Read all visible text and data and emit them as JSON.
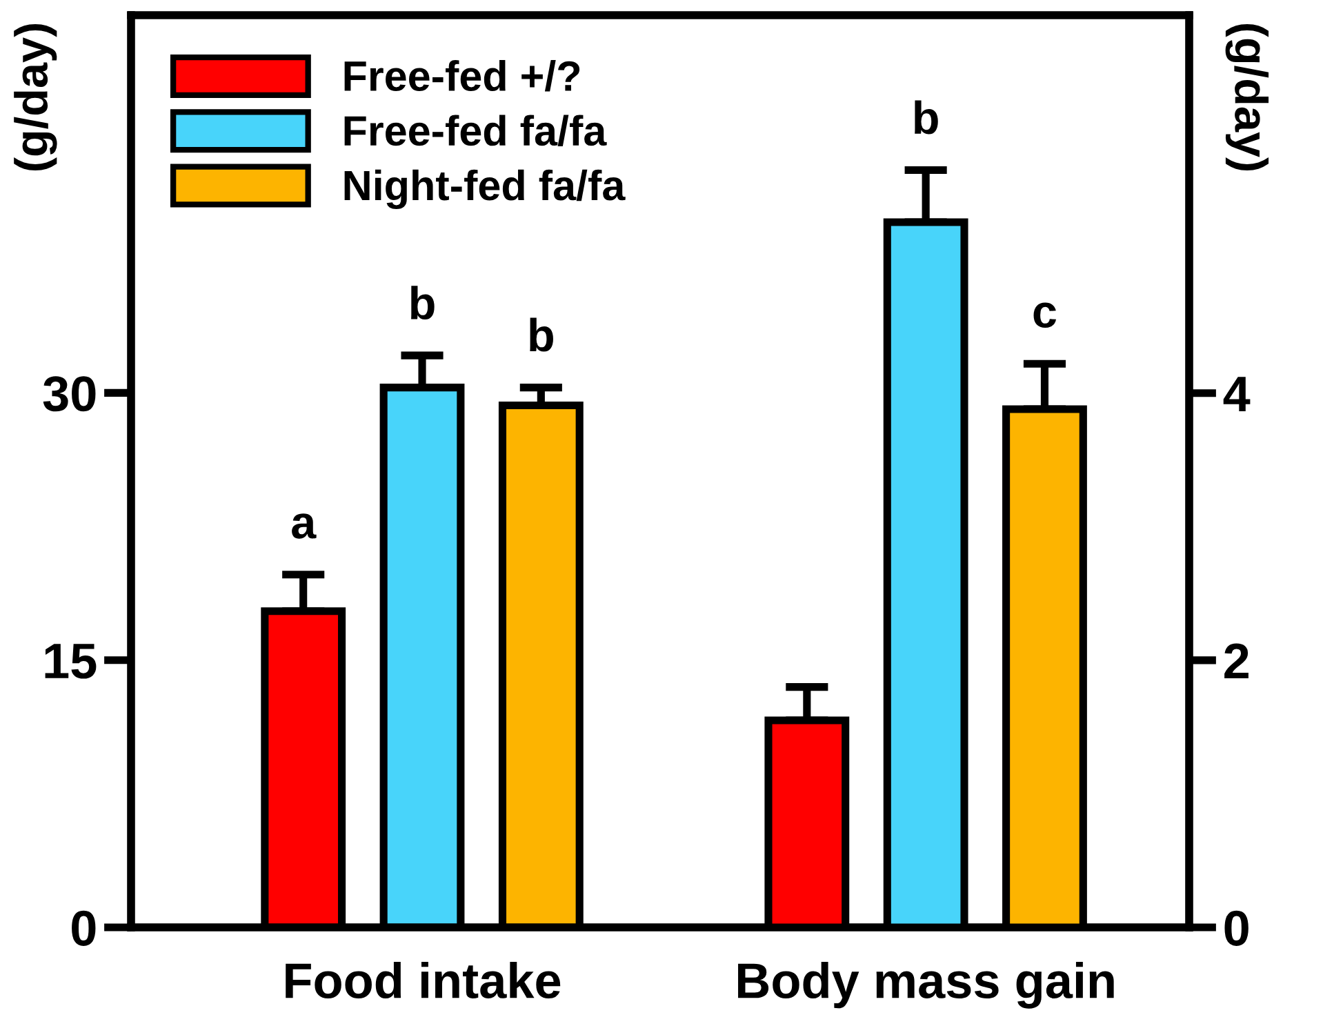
{
  "chart_data": {
    "type": "bar",
    "categories": [
      "Food intake",
      "Body mass gain"
    ],
    "ylabel": "(g/day)",
    "y2label": "(g/day)",
    "ylim": [
      0,
      51.2
    ],
    "yticks": [
      0,
      15,
      30
    ],
    "y2lim": [
      0,
      6.83
    ],
    "y2ticks": [
      0,
      2,
      4
    ],
    "grid": false,
    "legend": "top left",
    "series": [
      {
        "name": "Free-fed +/?",
        "color": "#ff0000",
        "values": [
          17.75,
          null
        ],
        "errors": [
          [
            17.75,
            19.8
          ],
          null
        ],
        "value_labels": [
          "a",
          null
        ]
      },
      {
        "name": "Free-fed fa/fa",
        "color": "#48d4fa",
        "values": [
          30.3,
          null
        ],
        "errors": [
          [
            30.3,
            32.1
          ],
          null
        ],
        "value_labels": [
          "b",
          null
        ]
      },
      {
        "name": "Night-fed fa/fa",
        "color": "#fdb400",
        "values": [
          29.3,
          null
        ],
        "errors": [
          [
            29.3,
            30.3
          ],
          null
        ],
        "value_labels": [
          "b",
          null
        ]
      },
      {
        "color": "#ff0000",
        "axis": "y2",
        "values": [
          null,
          1.55
        ],
        "errors": [
          null,
          [
            1.55,
            1.8
          ]
        ]
      },
      {
        "color": "#48d4fa",
        "axis": "y2",
        "values": [
          null,
          5.28
        ],
        "errors": [
          null,
          [
            5.28,
            5.67
          ]
        ],
        "value_labels": [
          null,
          "b"
        ]
      },
      {
        "color": "#fdb400",
        "axis": "y2",
        "values": [
          null,
          3.88
        ],
        "errors": [
          null,
          [
            3.88,
            4.22
          ]
        ],
        "value_labels": [
          null,
          "c"
        ]
      }
    ]
  }
}
